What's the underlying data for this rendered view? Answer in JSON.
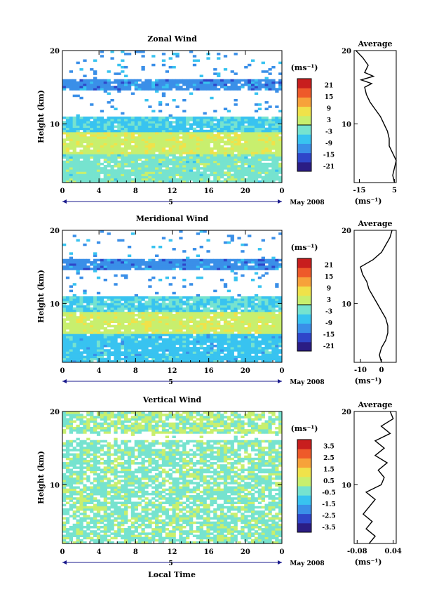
{
  "figure": {
    "xaxis_label": "Local Time",
    "date_label": "May 2008",
    "day_label": "5"
  },
  "chart_data": [
    {
      "type": "heatmap",
      "title": "Zonal Wind",
      "ylabel": "Height (km)",
      "x_ticks": [
        "0",
        "4",
        "8",
        "12",
        "16",
        "20",
        "0"
      ],
      "y_ticks": [
        "10",
        "20"
      ],
      "xlim": [
        0,
        24
      ],
      "ylim": [
        2,
        20
      ],
      "colorbar": {
        "unit": "(ms⁻¹)",
        "ticks": [
          "21",
          "15",
          "9",
          "3",
          "-3",
          "-9",
          "-15",
          "-21"
        ],
        "range": [
          -24,
          24
        ]
      },
      "colors": [
        "#2b1d84",
        "#2f46c9",
        "#3a8fe8",
        "#38c3f0",
        "#76e3cf",
        "#c8ef6e",
        "#f0e24a",
        "#f7a23a",
        "#ee5a2a",
        "#c81e1e"
      ],
      "layers": [
        {
          "z": [
            16.0,
            20.0
          ],
          "value": null,
          "note": "mostly missing data above 16 km"
        },
        {
          "z": [
            14.5,
            16.0
          ],
          "value": -12
        },
        {
          "z": [
            11.0,
            14.5
          ],
          "value": null,
          "note": "gap with sparse data"
        },
        {
          "z": [
            9.0,
            11.0
          ],
          "value": -6
        },
        {
          "z": [
            6.0,
            9.0
          ],
          "value": 3
        },
        {
          "z": [
            2.0,
            6.0
          ],
          "value": -2
        }
      ],
      "average": {
        "title": "Average",
        "xlabel": "(ms⁻¹)",
        "x_ticks": [
          "-15",
          "5"
        ],
        "xlim": [
          -18,
          6
        ],
        "y_ticks": [
          "10",
          "20"
        ],
        "profile_z": [
          2,
          3,
          4,
          5,
          6,
          7,
          8,
          9,
          10,
          11,
          12,
          13,
          14,
          15,
          15.5,
          16,
          16.5,
          17,
          18,
          19,
          20
        ],
        "profile_u": [
          5,
          4,
          5,
          6,
          4,
          2,
          2,
          1,
          -1,
          -3,
          -6,
          -9,
          -11,
          -12,
          -8,
          -14,
          -7,
          -12,
          -10,
          -13,
          -17
        ]
      }
    },
    {
      "type": "heatmap",
      "title": "Meridional Wind",
      "ylabel": "Height (km)",
      "x_ticks": [
        "0",
        "4",
        "8",
        "12",
        "16",
        "20",
        "0"
      ],
      "y_ticks": [
        "10",
        "20"
      ],
      "xlim": [
        0,
        24
      ],
      "ylim": [
        2,
        20
      ],
      "colorbar": {
        "unit": "(ms⁻¹)",
        "ticks": [
          "21",
          "15",
          "9",
          "3",
          "-3",
          "-9",
          "-15",
          "-21"
        ],
        "range": [
          -24,
          24
        ]
      },
      "colors": [
        "#2b1d84",
        "#2f46c9",
        "#3a8fe8",
        "#38c3f0",
        "#76e3cf",
        "#c8ef6e",
        "#f0e24a",
        "#f7a23a",
        "#ee5a2a",
        "#c81e1e"
      ],
      "layers": [
        {
          "z": [
            16.0,
            20.0
          ],
          "value": null
        },
        {
          "z": [
            14.5,
            16.0
          ],
          "value": -12
        },
        {
          "z": [
            11.0,
            14.5
          ],
          "value": null
        },
        {
          "z": [
            9.0,
            11.0
          ],
          "value": -5
        },
        {
          "z": [
            6.0,
            9.0
          ],
          "value": 3
        },
        {
          "z": [
            2.0,
            6.0
          ],
          "value": -7
        }
      ],
      "average": {
        "title": "Average",
        "xlabel": "(ms⁻¹)",
        "x_ticks": [
          "-10",
          "0"
        ],
        "xlim": [
          -13,
          7
        ],
        "y_ticks": [
          "10",
          "20"
        ],
        "profile_z": [
          2,
          3,
          4,
          5,
          6,
          7,
          8,
          9,
          10,
          11,
          12,
          13,
          14,
          15,
          16,
          17,
          18,
          19,
          20
        ],
        "profile_u": [
          0,
          -1,
          0,
          2,
          3,
          3,
          2,
          0,
          -2,
          -4,
          -6,
          -7,
          -9,
          -10,
          -4,
          0,
          2,
          4,
          5
        ]
      }
    },
    {
      "type": "heatmap",
      "title": "Vertical Wind",
      "ylabel": "Height (km)",
      "xlabel": "Local Time",
      "x_ticks": [
        "0",
        "4",
        "8",
        "12",
        "16",
        "20",
        "0"
      ],
      "y_ticks": [
        "10",
        "20"
      ],
      "xlim": [
        0,
        24
      ],
      "ylim": [
        2,
        20
      ],
      "colorbar": {
        "unit": "(ms⁻¹)",
        "ticks": [
          "3.5",
          "2.5",
          "1.5",
          "0.5",
          "-0.5",
          "-1.5",
          "-2.5",
          "-3.5"
        ],
        "range": [
          -4,
          4
        ]
      },
      "colors": [
        "#2b1d84",
        "#2f46c9",
        "#3a8fe8",
        "#38c3f0",
        "#76e3cf",
        "#c8ef6e",
        "#f0e24a",
        "#f7a23a",
        "#ee5a2a",
        "#c81e1e"
      ],
      "layers": [
        {
          "z": [
            17.0,
            20.0
          ],
          "value": 0.0
        },
        {
          "z": [
            16.0,
            17.0
          ],
          "value": null
        },
        {
          "z": [
            2.0,
            16.0
          ],
          "value": -0.2
        }
      ],
      "average": {
        "title": "Average",
        "xlabel": "(ms⁻¹)",
        "x_ticks": [
          "-0.08",
          "0.04"
        ],
        "xlim": [
          -0.09,
          0.05
        ],
        "y_ticks": [
          "10",
          "20"
        ],
        "profile_z": [
          2,
          3,
          4,
          5,
          6,
          7,
          8,
          9,
          10,
          11,
          12,
          13,
          14,
          15,
          16,
          17,
          18,
          19,
          20
        ],
        "profile_u": [
          -0.04,
          -0.02,
          -0.05,
          -0.03,
          -0.06,
          -0.04,
          -0.02,
          -0.05,
          0.0,
          0.01,
          -0.01,
          0.02,
          -0.02,
          0.01,
          -0.02,
          0.03,
          0.0,
          0.04,
          0.03
        ]
      }
    }
  ]
}
